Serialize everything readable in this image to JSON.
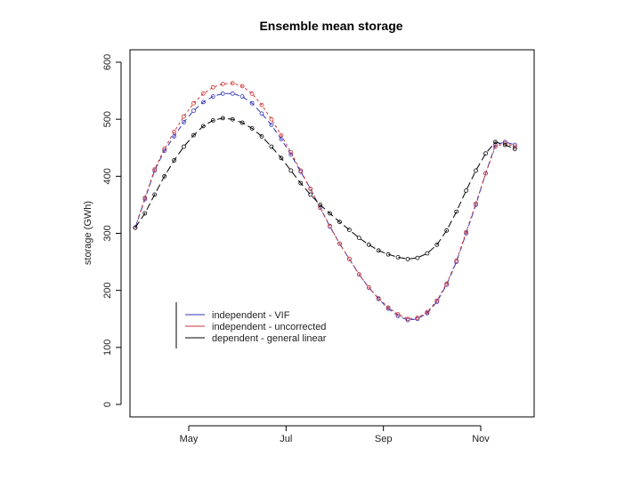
{
  "chart_data": {
    "type": "line",
    "title": "Ensemble mean storage",
    "xlabel": "",
    "ylabel": "storage (GWh)",
    "ylim": [
      0,
      600
    ],
    "yticks": [
      "0",
      "100",
      "200",
      "300",
      "400",
      "500",
      "600"
    ],
    "xticks": [
      {
        "label": "May",
        "month": 5
      },
      {
        "label": "Jul",
        "month": 7
      },
      {
        "label": "Sep",
        "month": 9
      },
      {
        "label": "Nov",
        "month": 11
      }
    ],
    "xlim": [
      3.6,
      11.8
    ],
    "grid": false,
    "legend_position": "bottom-left",
    "x": [
      3.9,
      4.1,
      4.3,
      4.5,
      4.7,
      4.9,
      5.1,
      5.3,
      5.5,
      5.7,
      5.9,
      6.1,
      6.3,
      6.5,
      6.7,
      6.9,
      7.1,
      7.3,
      7.5,
      7.7,
      7.9,
      8.1,
      8.3,
      8.5,
      8.7,
      8.9,
      9.1,
      9.3,
      9.5,
      9.7,
      9.9,
      10.1,
      10.3,
      10.5,
      10.7,
      10.9,
      11.1,
      11.3,
      11.5,
      11.7
    ],
    "series": [
      {
        "name": "independent - VIF",
        "color": "#3333bb",
        "dash": "6,4",
        "values": [
          310,
          360,
          410,
          445,
          470,
          495,
          515,
          530,
          540,
          545,
          545,
          540,
          528,
          510,
          490,
          465,
          438,
          408,
          378,
          345,
          312,
          282,
          255,
          228,
          205,
          185,
          168,
          155,
          148,
          150,
          160,
          180,
          210,
          250,
          300,
          350,
          405,
          455,
          460,
          455
        ]
      },
      {
        "name": "independent - uncorrected",
        "color": "#cc3333",
        "dash": "3,3",
        "values": [
          310,
          362,
          412,
          448,
          478,
          505,
          528,
          545,
          556,
          562,
          563,
          558,
          545,
          525,
          500,
          472,
          442,
          410,
          378,
          345,
          313,
          282,
          255,
          228,
          205,
          186,
          170,
          158,
          150,
          152,
          162,
          182,
          212,
          252,
          302,
          352,
          405,
          452,
          458,
          452
        ]
      },
      {
        "name": "dependent - general linear",
        "color": "#000000",
        "dash": "8,4",
        "values": [
          310,
          335,
          368,
          400,
          428,
          452,
          472,
          488,
          498,
          502,
          500,
          494,
          484,
          470,
          452,
          432,
          410,
          388,
          368,
          350,
          335,
          320,
          306,
          292,
          280,
          270,
          263,
          258,
          255,
          257,
          265,
          280,
          305,
          338,
          375,
          410,
          440,
          460,
          455,
          448
        ]
      }
    ]
  }
}
